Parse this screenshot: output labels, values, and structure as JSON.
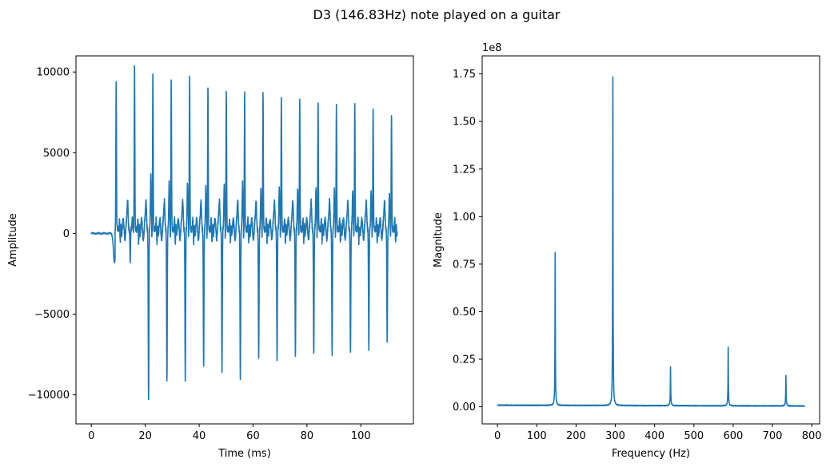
{
  "figure": {
    "suptitle": "D3 (146.83Hz) note played on a guitar",
    "line_color": "#1f77b4"
  },
  "chart_data": [
    {
      "type": "line",
      "title": "",
      "xlabel": "Time (ms)",
      "ylabel": "Amplitude",
      "xlim": [
        -5.7,
        119.5
      ],
      "ylim": [
        -11800,
        11000
      ],
      "xticks": [
        0,
        20,
        40,
        60,
        80,
        100
      ],
      "yticks": [
        -10000,
        -5000,
        0,
        5000,
        10000
      ],
      "ytick_labels": [
        "−10000",
        "−5000",
        "0",
        "5000",
        "10000"
      ],
      "grid": false,
      "waveform": {
        "start_ms": 0,
        "end_ms": 113.5,
        "period_ms": 6.81,
        "first_pulse_ms": 8.8,
        "peaks_ms": [
          9.2,
          16.0,
          22.8,
          29.6,
          36.4,
          43.2,
          50.0,
          56.8,
          63.6,
          70.4,
          77.2,
          84.0,
          90.8,
          97.6,
          104.4,
          111.2
        ],
        "peak_values": [
          9150,
          10050,
          9600,
          9100,
          9300,
          8800,
          8450,
          8400,
          8350,
          8200,
          8050,
          7800,
          7600,
          7600,
          7300,
          7050
        ],
        "trough_values": [
          -2200,
          -10800,
          -9500,
          -9500,
          -8700,
          -8900,
          -9500,
          -8200,
          -8300,
          -8000,
          -8000,
          -8000,
          -7800,
          -7500,
          -7200,
          -7300
        ]
      }
    },
    {
      "type": "line",
      "title": "",
      "xlabel": "Frequency (Hz)",
      "ylabel": "Magnitude",
      "xlim": [
        -39,
        820
      ],
      "ylim": [
        -0.09,
        1.845
      ],
      "y_scale_label": "1e8",
      "xticks": [
        0,
        100,
        200,
        300,
        400,
        500,
        600,
        700,
        800
      ],
      "yticks": [
        0.0,
        0.25,
        0.5,
        0.75,
        1.0,
        1.25,
        1.5,
        1.75
      ],
      "ytick_labels": [
        "0.00",
        "0.25",
        "0.50",
        "0.75",
        "1.00",
        "1.25",
        "1.50",
        "1.75"
      ],
      "grid": false,
      "spectrum": {
        "x_max": 782,
        "baseline": 0.008,
        "peaks": [
          {
            "freq": 146.83,
            "value": 0.81
          },
          {
            "freq": 293.66,
            "value": 1.76
          },
          {
            "freq": 440.5,
            "value": 0.195
          },
          {
            "freq": 587.3,
            "value": 0.3
          },
          {
            "freq": 734.2,
            "value": 0.15
          }
        ]
      }
    }
  ]
}
